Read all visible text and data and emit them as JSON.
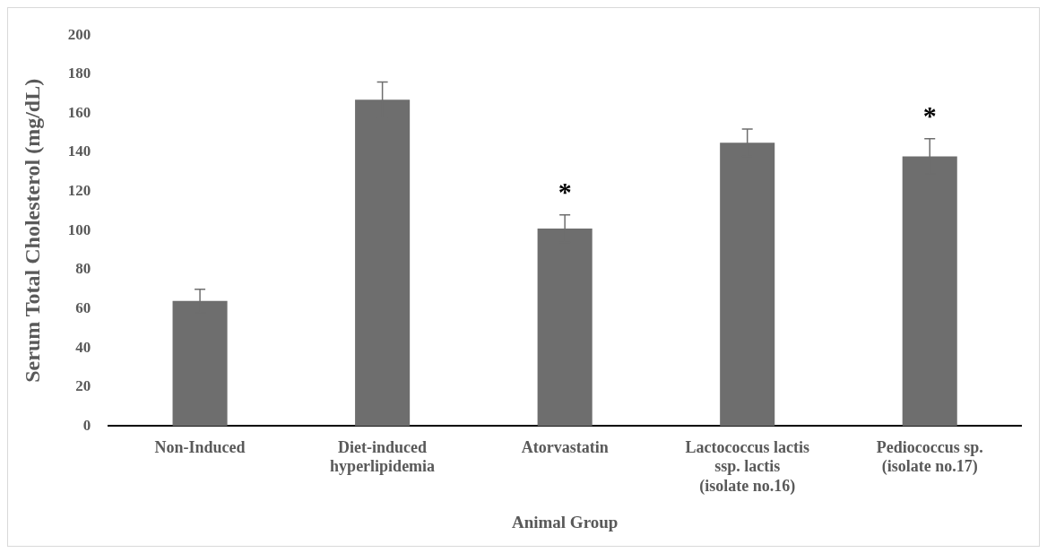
{
  "chart_data": {
    "type": "bar",
    "xlabel": "Animal Group",
    "ylabel": "Serum Total Cholesterol (mg/dL)",
    "categories": [
      "Non-Induced",
      "Diet-induced hyperlipidemia",
      "Atorvastatin",
      "Lactococcus lactis ssp. lactis (isolate no.16)",
      "Pediococcus sp. (isolate no.17)"
    ],
    "values": [
      64,
      167,
      101,
      145,
      138
    ],
    "errors": [
      6,
      9,
      7,
      7,
      9
    ],
    "color": "#6e6e6e",
    "ylim": [
      0,
      200
    ],
    "yticks": [
      0,
      20,
      40,
      60,
      80,
      100,
      120,
      140,
      160,
      180,
      200
    ],
    "grid": false,
    "legend": false,
    "annotations": [
      {
        "text": "*",
        "x": "Atorvastatin",
        "y": 108
      },
      {
        "text": "*",
        "x": "Pediococcus sp. (isolate no.17)",
        "y": 147
      }
    ]
  }
}
